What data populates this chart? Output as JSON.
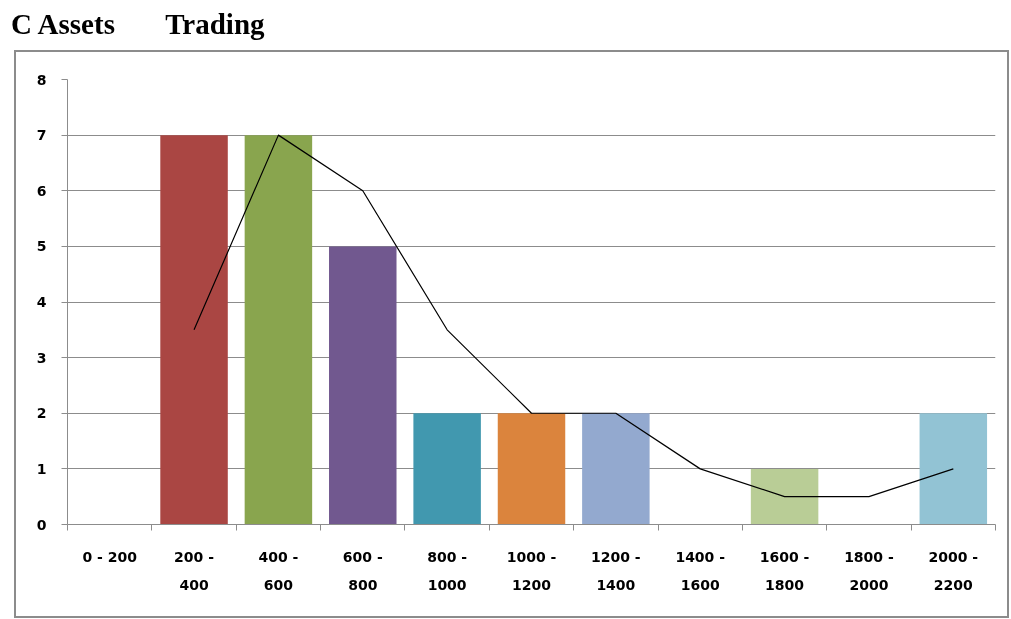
{
  "chart_data": {
    "type": "bar",
    "title": "C Assets       Trading",
    "categories": [
      "0 - 200",
      "200 - 400",
      "400 - 600",
      "600 - 800",
      "800 - 1000",
      "1000 - 1200",
      "1200 - 1400",
      "1400 - 1600",
      "1600 - 1800",
      "1800 - 2000",
      "2000 - 2200"
    ],
    "series": [
      {
        "colors": [
          "#4572a7",
          "#aa4643",
          "#89a54e",
          "#71588f",
          "#4198af",
          "#db843d",
          "#93a9cf",
          "#d19392",
          "#b9cd96",
          "#a99bbd",
          "#92c3d4"
        ],
        "values": [
          0,
          7,
          7,
          5,
          2,
          2,
          2,
          0,
          1,
          0,
          2
        ]
      },
      {
        "type": "line",
        "color": "#000000",
        "values": [
          null,
          3.5,
          7,
          6,
          3.5,
          2,
          2,
          1,
          0.5,
          0.5,
          1
        ]
      }
    ],
    "ylim": [
      0,
      8
    ],
    "yticks": [
      0,
      1,
      2,
      3,
      4,
      5,
      6,
      7,
      8
    ],
    "grid": "y"
  }
}
